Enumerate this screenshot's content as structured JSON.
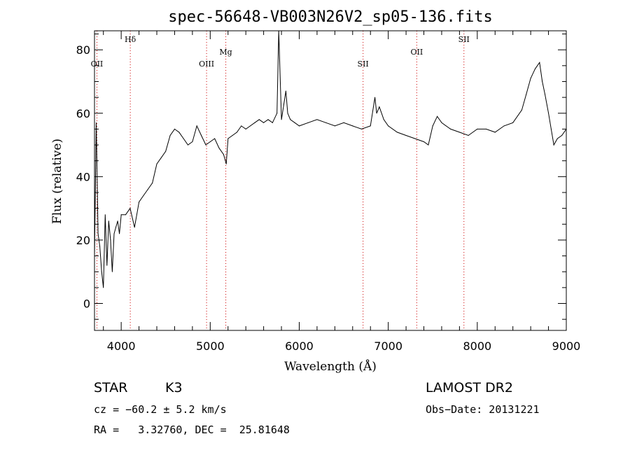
{
  "chart_data": {
    "type": "line",
    "title": "spec-56648-VB003N26V2_sp05-136.fits",
    "xlabel": "Wavelength (Å)",
    "ylabel": "Flux (relative)",
    "xlim": [
      3700,
      9000
    ],
    "ylim": [
      -8.5,
      86
    ],
    "x_ticks": [
      4000,
      5000,
      6000,
      7000,
      8000,
      9000
    ],
    "y_ticks": [
      0,
      20,
      40,
      60,
      80
    ],
    "grid": false,
    "series": [
      {
        "color": "#000000",
        "x": [
          3700,
          3720,
          3740,
          3760,
          3780,
          3800,
          3820,
          3840,
          3860,
          3880,
          3900,
          3920,
          3940,
          3960,
          3980,
          4000,
          4050,
          4100,
          4150,
          4200,
          4250,
          4300,
          4350,
          4400,
          4450,
          4500,
          4550,
          4600,
          4650,
          4700,
          4750,
          4800,
          4850,
          4900,
          4950,
          5000,
          5050,
          5100,
          5150,
          5180,
          5200,
          5250,
          5300,
          5350,
          5400,
          5450,
          5500,
          5550,
          5600,
          5650,
          5700,
          5750,
          5770,
          5800,
          5850,
          5870,
          5900,
          5950,
          6000,
          6100,
          6200,
          6300,
          6400,
          6500,
          6600,
          6700,
          6800,
          6850,
          6870,
          6900,
          6950,
          7000,
          7100,
          7200,
          7300,
          7400,
          7450,
          7500,
          7550,
          7600,
          7650,
          7700,
          7800,
          7900,
          8000,
          8100,
          8200,
          8300,
          8400,
          8500,
          8550,
          8600,
          8650,
          8700,
          8730,
          8760,
          8800,
          8830,
          8860,
          8900,
          8950,
          9000
        ],
        "y": [
          15,
          57,
          22,
          18,
          10,
          5,
          28,
          12,
          26,
          20,
          10,
          22,
          24,
          26,
          22,
          28,
          28,
          30,
          24,
          32,
          34,
          36,
          38,
          44,
          46,
          48,
          53,
          55,
          54,
          52,
          50,
          51,
          56,
          53,
          50,
          51,
          52,
          49,
          47,
          44,
          52,
          53,
          54,
          56,
          55,
          56,
          57,
          58,
          57,
          58,
          57,
          60,
          86,
          58,
          67,
          60,
          58,
          57,
          56,
          57,
          58,
          57,
          56,
          57,
          56,
          55,
          56,
          65,
          60,
          62,
          58,
          56,
          54,
          53,
          52,
          51,
          50,
          56,
          59,
          57,
          56,
          55,
          54,
          53,
          55,
          55,
          54,
          56,
          57,
          61,
          66,
          71,
          74,
          76,
          70,
          66,
          60,
          55,
          50,
          52,
          53,
          55
        ]
      }
    ],
    "line_markers": [
      {
        "label": "OII",
        "x": 3727,
        "color": "#cc0000",
        "row": 2
      },
      {
        "label": "Hδ",
        "x": 4102,
        "color": "#cc0000",
        "row": 0
      },
      {
        "label": "OIII",
        "x": 4959,
        "color": "#cc0000",
        "row": 2
      },
      {
        "label": "Mg",
        "x": 5175,
        "color": "#cc0000",
        "row": 1
      },
      {
        "label": "SII",
        "x": 6717,
        "color": "#cc0000",
        "row": 2
      },
      {
        "label": "OII",
        "x": 7320,
        "color": "#cc0000",
        "row": 1
      },
      {
        "label": "SII",
        "x": 7850,
        "color": "#cc0000",
        "row": 0
      }
    ]
  },
  "footer": {
    "class_label": "STAR",
    "subclass": "K3",
    "survey": "LAMOST DR2",
    "cz": "cz = −60.2 ± 5.2 km/s",
    "obs_date": "Obs−Date: 20131221",
    "coords": "RA =   3.32760, DEC =  25.81648"
  }
}
